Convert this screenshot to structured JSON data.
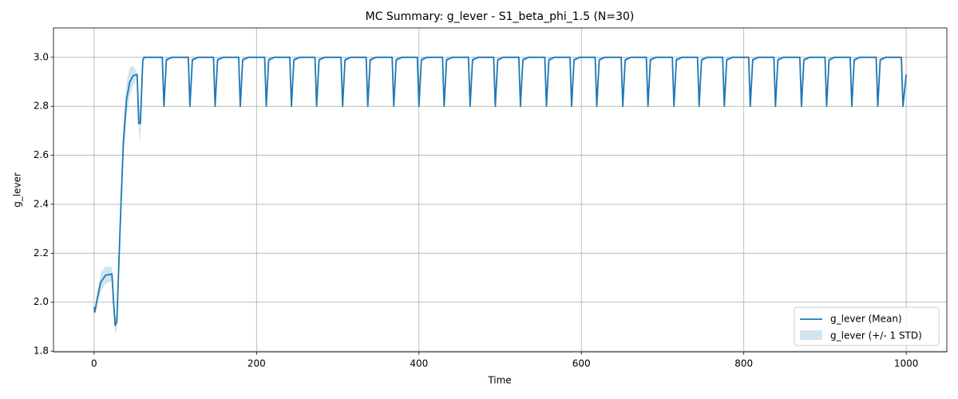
{
  "chart_data": {
    "type": "line",
    "title": "MC Summary: g_lever - S1_beta_phi_1.5 (N=30)",
    "xlabel": "Time",
    "ylabel": "g_lever",
    "x": [
      0,
      1,
      3,
      8,
      14,
      22,
      24,
      26,
      28,
      32,
      36,
      40,
      44,
      48,
      53,
      55,
      57,
      60,
      62,
      84,
      86,
      89,
      96,
      116,
      118,
      121,
      128,
      147,
      149,
      152,
      159,
      178,
      180,
      183,
      190,
      210,
      212,
      215,
      222,
      241,
      243,
      246,
      253,
      272,
      274,
      277,
      284,
      304,
      306,
      309,
      316,
      335,
      337,
      340,
      347,
      367,
      369,
      372,
      379,
      398,
      400,
      403,
      410,
      429,
      431,
      434,
      441,
      461,
      463,
      466,
      473,
      492,
      494,
      497,
      504,
      523,
      525,
      528,
      535,
      555,
      557,
      560,
      567,
      586,
      588,
      591,
      598,
      617,
      619,
      622,
      629,
      649,
      651,
      654,
      661,
      680,
      682,
      685,
      692,
      712,
      714,
      717,
      724,
      743,
      745,
      748,
      755,
      774,
      776,
      779,
      786,
      806,
      808,
      811,
      818,
      837,
      839,
      842,
      849,
      869,
      871,
      874,
      881,
      900,
      902,
      905,
      912,
      931,
      933,
      936,
      943,
      963,
      965,
      968,
      975,
      994,
      996,
      1000
    ],
    "series": [
      {
        "name": "g_lever (Mean)",
        "color": "#1f77b4",
        "values": [
          1.98,
          1.96,
          2.0,
          2.08,
          2.11,
          2.115,
          2.0,
          1.905,
          1.92,
          2.3,
          2.65,
          2.83,
          2.9,
          2.925,
          2.93,
          2.73,
          2.73,
          2.99,
          3.0,
          3,
          2.8,
          2.99,
          3,
          3,
          2.8,
          2.99,
          3,
          3,
          2.8,
          2.99,
          3,
          3,
          2.8,
          2.99,
          3,
          3,
          2.8,
          2.99,
          3,
          3,
          2.8,
          2.99,
          3,
          3,
          2.8,
          2.99,
          3,
          3,
          2.8,
          2.99,
          3,
          3,
          2.8,
          2.99,
          3,
          3,
          2.8,
          2.99,
          3,
          3,
          2.8,
          2.99,
          3,
          3,
          2.8,
          2.99,
          3,
          3,
          2.8,
          2.99,
          3,
          3,
          2.8,
          2.99,
          3,
          3,
          2.8,
          2.99,
          3,
          3,
          2.8,
          2.99,
          3,
          3,
          2.8,
          2.99,
          3,
          3,
          2.8,
          2.99,
          3,
          3,
          2.8,
          2.99,
          3,
          3,
          2.8,
          2.99,
          3,
          3,
          2.8,
          2.99,
          3,
          3,
          2.8,
          2.99,
          3,
          3,
          2.8,
          2.99,
          3,
          3,
          2.8,
          2.99,
          3,
          3,
          2.8,
          2.99,
          3,
          3,
          2.8,
          2.99,
          3,
          3,
          2.8,
          2.99,
          3,
          3,
          2.8,
          2.99,
          3,
          3,
          2.8,
          2.99,
          3,
          3,
          2.8,
          2.93
        ]
      }
    ],
    "band": {
      "name": "g_lever (+/- 1 STD)",
      "color": "#1f77b4",
      "values": [
        0.01,
        0.01,
        0.02,
        0.04,
        0.035,
        0.03,
        0.03,
        0.04,
        0.03,
        0.05,
        0.07,
        0.07,
        0.06,
        0.04,
        0.01,
        0.03,
        0.08,
        0.02,
        0.003,
        0.002,
        0.015,
        0.01,
        0.003,
        0.002,
        0.015,
        0.01,
        0.003,
        0.002,
        0.015,
        0.01,
        0.003,
        0.002,
        0.015,
        0.01,
        0.003,
        0.002,
        0.015,
        0.01,
        0.003,
        0.002,
        0.015,
        0.01,
        0.003,
        0.002,
        0.015,
        0.01,
        0.003,
        0.002,
        0.015,
        0.01,
        0.003,
        0.002,
        0.015,
        0.01,
        0.003,
        0.002,
        0.015,
        0.01,
        0.003,
        0.002,
        0.015,
        0.01,
        0.003,
        0.002,
        0.015,
        0.01,
        0.003,
        0.002,
        0.015,
        0.01,
        0.003,
        0.002,
        0.015,
        0.01,
        0.003,
        0.002,
        0.015,
        0.01,
        0.003,
        0.002,
        0.015,
        0.01,
        0.003,
        0.002,
        0.015,
        0.01,
        0.003,
        0.002,
        0.015,
        0.01,
        0.003,
        0.002,
        0.015,
        0.01,
        0.003,
        0.002,
        0.015,
        0.01,
        0.003,
        0.002,
        0.015,
        0.01,
        0.003,
        0.002,
        0.015,
        0.01,
        0.003,
        0.002,
        0.015,
        0.01,
        0.003,
        0.002,
        0.015,
        0.01,
        0.003,
        0.002,
        0.015,
        0.01,
        0.003,
        0.002,
        0.015,
        0.01,
        0.003,
        0.002,
        0.015,
        0.01,
        0.003,
        0.002,
        0.015,
        0.01,
        0.003,
        0.002,
        0.015,
        0.01,
        0.003,
        0.002,
        0.015,
        0.01
      ]
    },
    "xlim": [
      -50,
      1050
    ],
    "xticks": [
      0,
      200,
      400,
      600,
      800,
      1000
    ],
    "ylim": [
      1.797,
      3.12
    ],
    "yticks": [
      1.8,
      {
        "value": 2,
        "label": "2.0"
      },
      2.2,
      2.4,
      2.6,
      2.8,
      {
        "value": 3,
        "label": "3.0"
      }
    ],
    "grid": true,
    "legend": "lower right"
  }
}
